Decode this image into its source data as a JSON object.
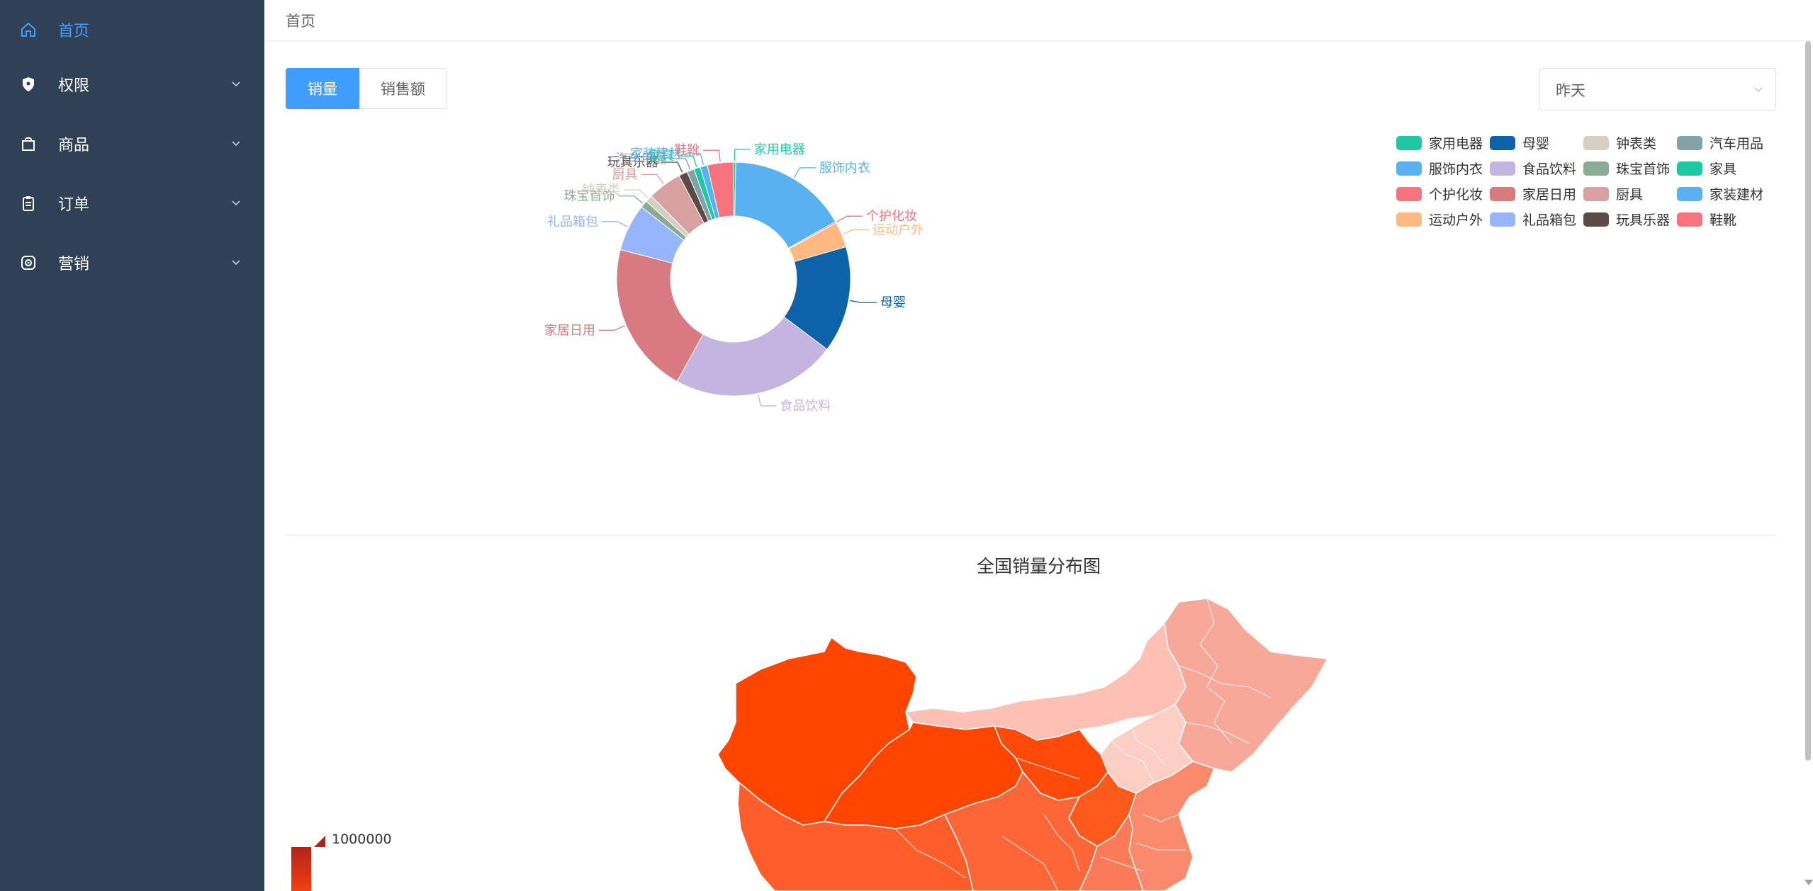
{
  "sidebar": {
    "items": [
      {
        "label": "首页",
        "icon": "home-icon",
        "active": true
      },
      {
        "label": "权限",
        "icon": "shield-icon"
      },
      {
        "label": "商品",
        "icon": "shopping-bag-icon"
      },
      {
        "label": "订单",
        "icon": "clipboard-icon"
      },
      {
        "label": "营销",
        "icon": "atom-icon"
      }
    ]
  },
  "breadcrumb": "首页",
  "tabs": [
    {
      "label": "销量",
      "active": true
    },
    {
      "label": "销售额"
    }
  ],
  "period_select": {
    "value": "昨天"
  },
  "colors": {
    "sidebar_bg": "#304156",
    "accent": "#409eff"
  },
  "chart_data": [
    {
      "type": "pie",
      "variant": "donut",
      "title": "",
      "legend_position": "top-right",
      "series": [
        {
          "name": "家用电器",
          "value": 0.3,
          "color": "#1ec8a5"
        },
        {
          "name": "服饰内衣",
          "value": 16.5,
          "color": "#5ab1ef"
        },
        {
          "name": "个护化妆",
          "value": 0.2,
          "color": "#f5737c"
        },
        {
          "name": "运动户外",
          "value": 3.5,
          "color": "#ffb980"
        },
        {
          "name": "母婴",
          "value": 14.7,
          "color": "#0e63a8"
        },
        {
          "name": "食品饮料",
          "value": 22.7,
          "color": "#c3b4e0"
        },
        {
          "name": "家居日用",
          "value": 21.0,
          "color": "#d87a80"
        },
        {
          "name": "礼品箱包",
          "value": 6.5,
          "color": "#97b5fc"
        },
        {
          "name": "珠宝首饰",
          "value": 1.0,
          "color": "#8aab95"
        },
        {
          "name": "钟表类",
          "value": 1.0,
          "color": "#d8cfc4"
        },
        {
          "name": "厨具",
          "value": 4.7,
          "color": "#d9a0a2"
        },
        {
          "name": "玩具乐器",
          "value": 1.2,
          "color": "#5a4a48"
        },
        {
          "name": "汽车用品",
          "value": 1.0,
          "color": "#81a3a6"
        },
        {
          "name": "家具",
          "value": 0.9,
          "color": "#1ec8a5"
        },
        {
          "name": "家装建材",
          "value": 1.0,
          "color": "#5ab1ef"
        },
        {
          "name": "鞋靴",
          "value": 3.6,
          "color": "#f5737c"
        }
      ],
      "legend": [
        "家用电器",
        "母婴",
        "钟表类",
        "汽车用品",
        "服饰内衣",
        "食品饮料",
        "珠宝首饰",
        "家具",
        "个护化妆",
        "家居日用",
        "厨具",
        "家装建材",
        "运动户外",
        "礼品箱包",
        "玩具乐器",
        "鞋靴"
      ]
    },
    {
      "type": "map",
      "title": "全国销量分布图",
      "visual_map": {
        "max_label": "1000000"
      }
    }
  ]
}
